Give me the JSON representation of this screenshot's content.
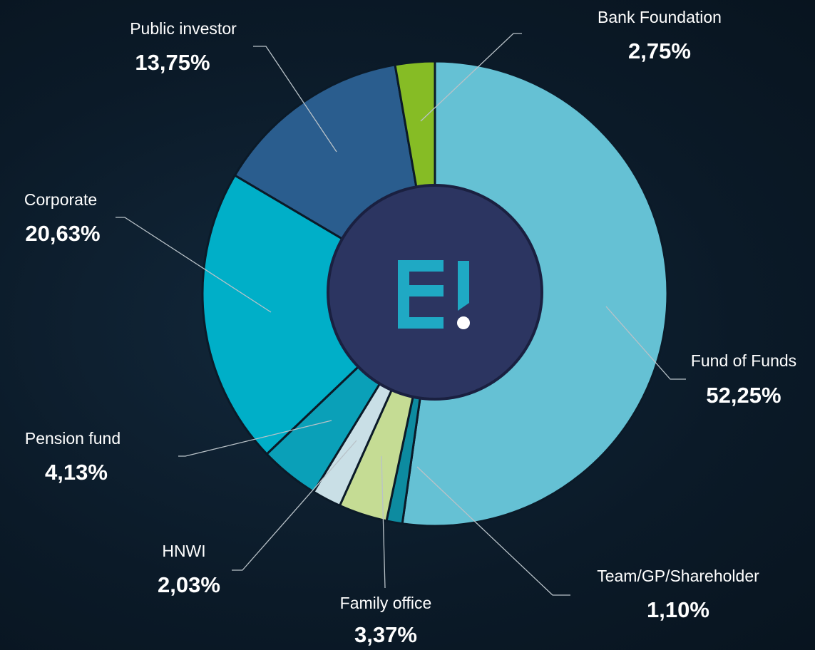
{
  "chart_data": {
    "type": "donut",
    "categories": [
      "Fund of Funds",
      "Team/GP/Shareholder",
      "Family office",
      "HNWI",
      "Pension fund",
      "Corporate",
      "Public investor",
      "Bank Foundation"
    ],
    "values": [
      52.25,
      1.1,
      3.37,
      2.03,
      4.13,
      20.63,
      13.75,
      2.75
    ],
    "value_labels": [
      "52,25%",
      "1,10%",
      "3,37%",
      "2,03%",
      "4,13%",
      "20,63%",
      "13,75%",
      "2,75%"
    ],
    "colors": [
      "#65c1d4",
      "#0d8ba0",
      "#c5dc94",
      "#c9dfe6",
      "#0aa0b8",
      "#00afc8",
      "#2a5d8e",
      "#86bc25"
    ]
  }
}
